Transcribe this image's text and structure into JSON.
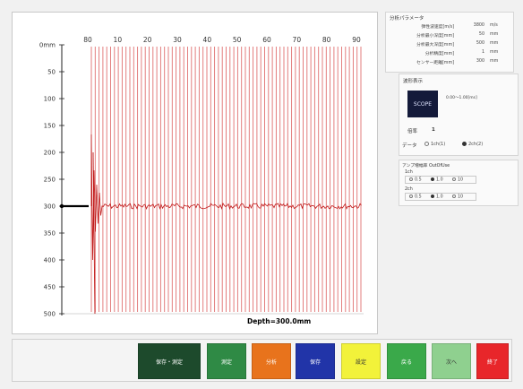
{
  "plot": {
    "top_axis_ticks": [
      "80",
      "10",
      "20",
      "30",
      "40",
      "50",
      "60",
      "70",
      "80",
      "90"
    ],
    "left_axis_ticks": [
      "0mm",
      "50",
      "100",
      "150",
      "200",
      "250",
      "300",
      "350",
      "400",
      "450",
      "500"
    ],
    "depth_label": "Depth=300.0mm",
    "colors": {
      "grid_line": "#e07070",
      "trace": "#c01818",
      "axis": "#222222"
    }
  },
  "params": {
    "title": "分析パラメータ",
    "rows": [
      {
        "label": "弾性波速度[m/s]",
        "value": "3800",
        "unit": "m/s"
      },
      {
        "label": "分析最小深度[mm]",
        "value": "50",
        "unit": "mm"
      },
      {
        "label": "分析最大深度[mm]",
        "value": "500",
        "unit": "mm"
      },
      {
        "label": "分析精度[mm]",
        "value": "1",
        "unit": "mm"
      },
      {
        "label": "センサー距離[mm]",
        "value": "300",
        "unit": "mm"
      }
    ]
  },
  "wave": {
    "title": "波形表示",
    "scope_label": "SCOPE",
    "range_text": "0.00～1.00[ms]",
    "ratio_label": "倍率",
    "ratio_value": "1",
    "data_label": "データ",
    "data_options": [
      "1ch(1)",
      "2ch(2)"
    ],
    "data_selected": "2ch(2)"
  },
  "amp": {
    "title": "アンプ増幅率 OutOfUse",
    "channels": [
      {
        "name": "1ch",
        "options": [
          "0.5",
          "1.0",
          "10"
        ],
        "selected": "1.0"
      },
      {
        "name": "2ch",
        "options": [
          "0.5",
          "1.0",
          "10"
        ],
        "selected": "1.0"
      }
    ]
  },
  "buttons": [
    {
      "key": "save-measure",
      "label": "保存・測定",
      "color": "#1d4a2c"
    },
    {
      "key": "measure",
      "label": "測定",
      "color": "#2f8a45"
    },
    {
      "key": "analyze",
      "label": "分析",
      "color": "#e8731c"
    },
    {
      "key": "save",
      "label": "保存",
      "color": "#2134a8"
    },
    {
      "key": "settings",
      "label": "設定",
      "color": "#f2f23a"
    },
    {
      "key": "back",
      "label": "戻る",
      "color": "#3aa94a"
    },
    {
      "key": "next",
      "label": "次へ",
      "color": "#8fd08f"
    },
    {
      "key": "exit",
      "label": "終了",
      "color": "#e8262a"
    }
  ]
}
